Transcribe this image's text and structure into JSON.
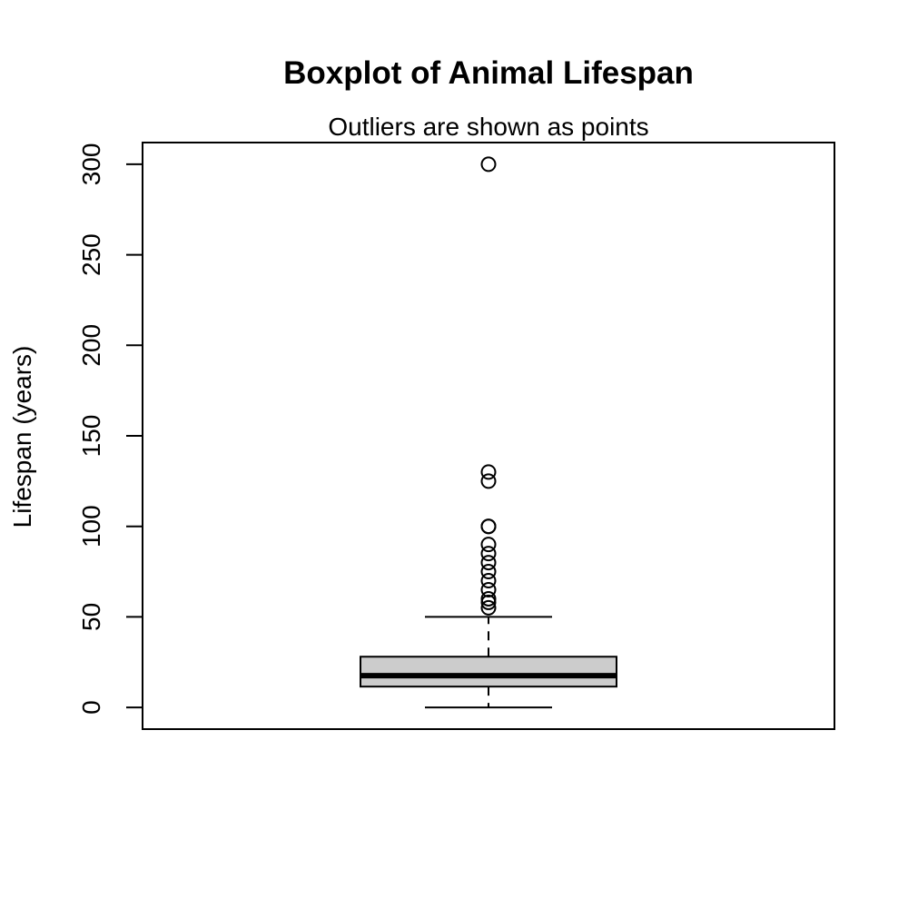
{
  "chart_data": {
    "type": "boxplot",
    "title": "Boxplot of Animal Lifespan",
    "subtitle": "Outliers are shown as points",
    "ylabel": "Lifespan (years)",
    "xlabel": "",
    "ylim": [
      -12,
      312
    ],
    "yticks": [
      0,
      50,
      100,
      150,
      200,
      250,
      300
    ],
    "ytick_labels": [
      "0",
      "50",
      "100",
      "150",
      "200",
      "250",
      "300"
    ],
    "grid": false,
    "box": {
      "whisker_low": 0,
      "q1": 11.5,
      "median": 17.5,
      "q3": 28,
      "whisker_high": 50,
      "fill": "#cccccc"
    },
    "outliers": [
      55,
      58,
      60,
      65,
      70,
      75,
      80,
      85,
      90,
      100,
      100,
      125,
      130,
      300
    ]
  }
}
